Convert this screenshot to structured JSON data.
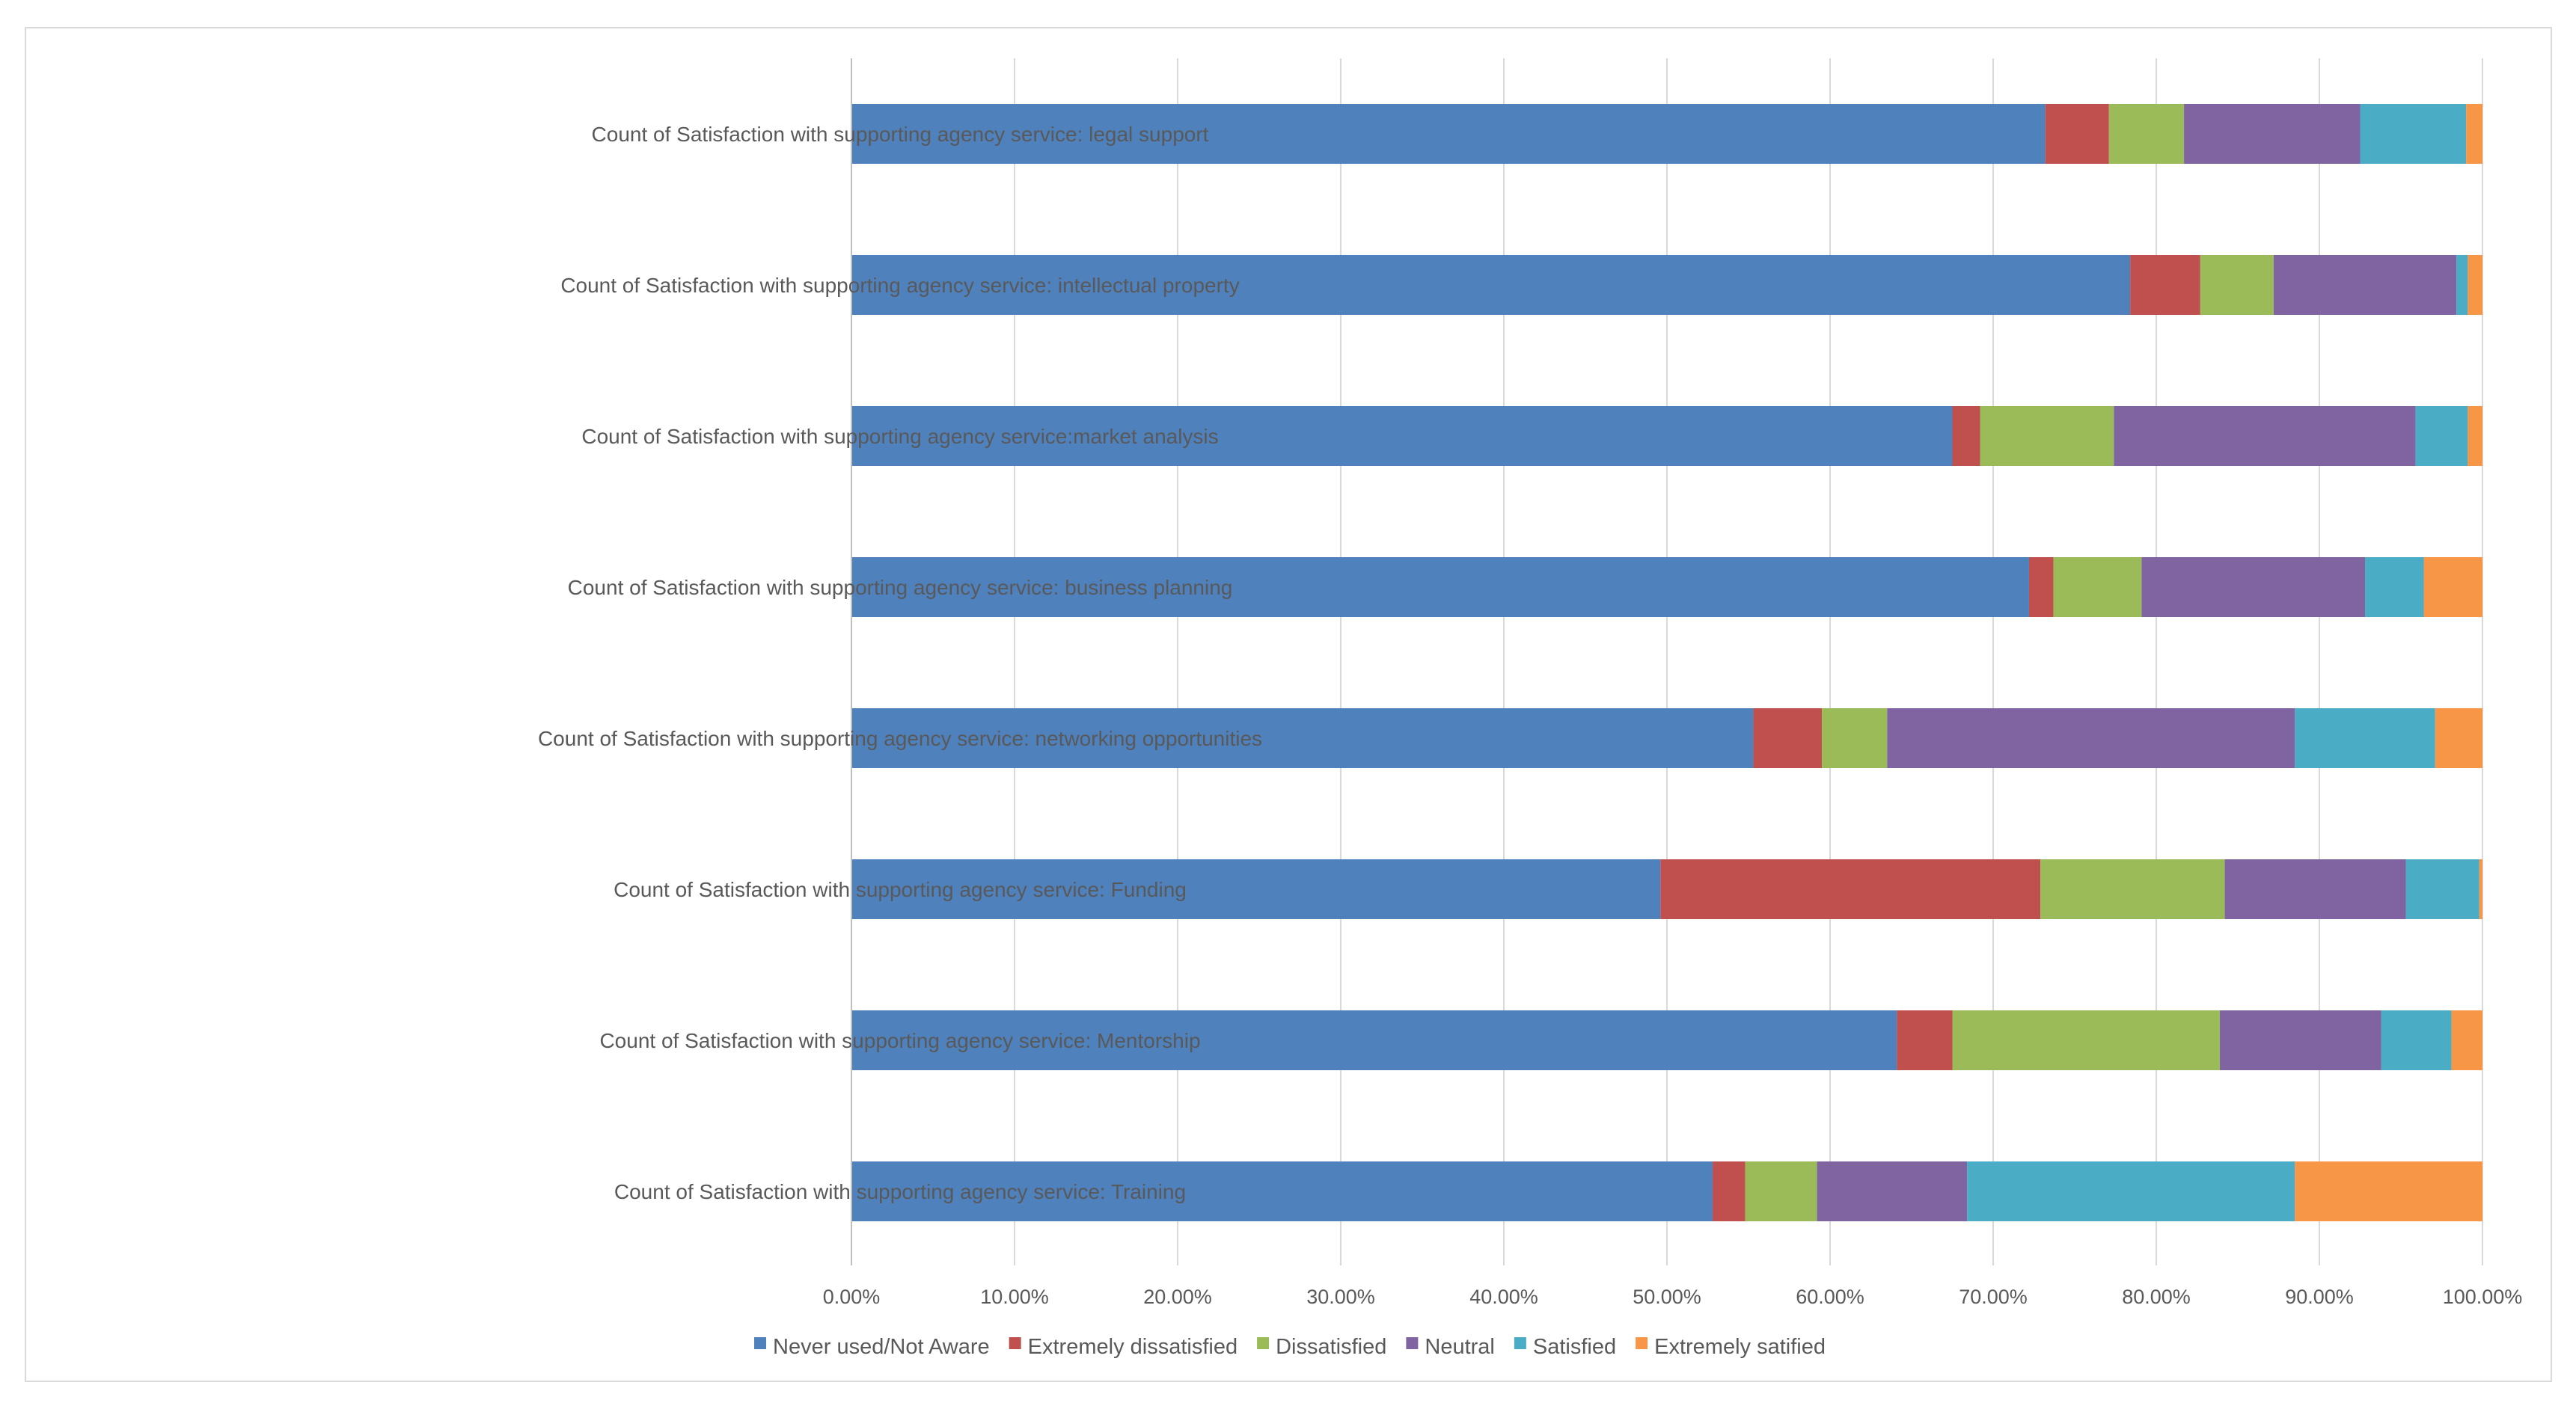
{
  "chart_data": {
    "type": "bar",
    "orientation": "horizontal",
    "stacked": "percent",
    "title": "",
    "xlabel": "",
    "ylabel": "",
    "xlim": [
      0,
      100
    ],
    "grid": true,
    "legend_position": "bottom",
    "categories": [
      "Count of Satisfaction with supporting agency service: legal support",
      "Count of Satisfaction with supporting agency service: intellectual property",
      "Count of Satisfaction with supporting agency service:market analysis",
      "Count of Satisfaction with supporting agency service: business planning",
      "Count of Satisfaction with supporting agency service:  networking opportunities",
      "Count of Satisfaction with supporting agency service: Funding",
      "Count of Satisfaction with supporting agency service: Mentorship",
      "Count of Satisfaction with supporting agency service: Training"
    ],
    "x_ticks": [
      "0.00%",
      "10.00%",
      "20.00%",
      "30.00%",
      "40.00%",
      "50.00%",
      "60.00%",
      "70.00%",
      "80.00%",
      "90.00%",
      "100.00%"
    ],
    "series": [
      {
        "name": "Never used/Not Aware",
        "color": "#4f81bd",
        "values": [
          73.2,
          78.4,
          67.5,
          72.2,
          55.3,
          49.6,
          64.1,
          52.8
        ]
      },
      {
        "name": "Extremely dissatisfied",
        "color": "#c0504d",
        "values": [
          3.9,
          4.3,
          1.7,
          1.5,
          4.2,
          23.3,
          3.4,
          2.0
        ]
      },
      {
        "name": "Dissatisfied",
        "color": "#9bbb59",
        "values": [
          4.6,
          4.5,
          8.2,
          5.4,
          4.0,
          11.3,
          16.4,
          4.4
        ]
      },
      {
        "name": "Neutral",
        "color": "#8064a2",
        "values": [
          10.8,
          11.2,
          18.5,
          13.7,
          25.0,
          11.1,
          9.9,
          9.2
        ]
      },
      {
        "name": "Satisfied",
        "color": "#4bacc6",
        "values": [
          6.5,
          0.7,
          3.2,
          3.6,
          8.6,
          4.5,
          4.3,
          20.1
        ]
      },
      {
        "name": "Extremely satified",
        "color": "#f79646",
        "values": [
          1.0,
          0.9,
          0.9,
          3.6,
          2.9,
          0.2,
          1.9,
          11.5
        ]
      }
    ]
  }
}
